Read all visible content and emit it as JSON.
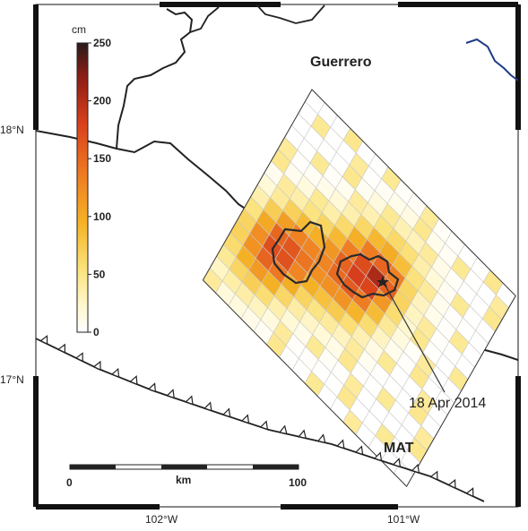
{
  "map": {
    "region_label": "Guerrero",
    "trench_label": "MAT",
    "event_label": "18  Apr 2014",
    "lat_labels": [
      "18°N",
      "17°N"
    ],
    "lon_labels": [
      "102°W",
      "101°W"
    ],
    "colorbar": {
      "unit": "cm",
      "ticks": [
        "250",
        "200",
        "150",
        "100",
        "50",
        "0"
      ],
      "min": 0,
      "max": 250
    },
    "scalebar": {
      "unit": "km",
      "ticks": [
        "0",
        "100"
      ]
    },
    "colors": {
      "coast": "#222222",
      "river": "#1f3a8a",
      "slip_low": "#fffce8",
      "slip_mid": "#f7c934",
      "slip_high": "#e0451e",
      "slip_max": "#2a1a1a"
    }
  }
}
